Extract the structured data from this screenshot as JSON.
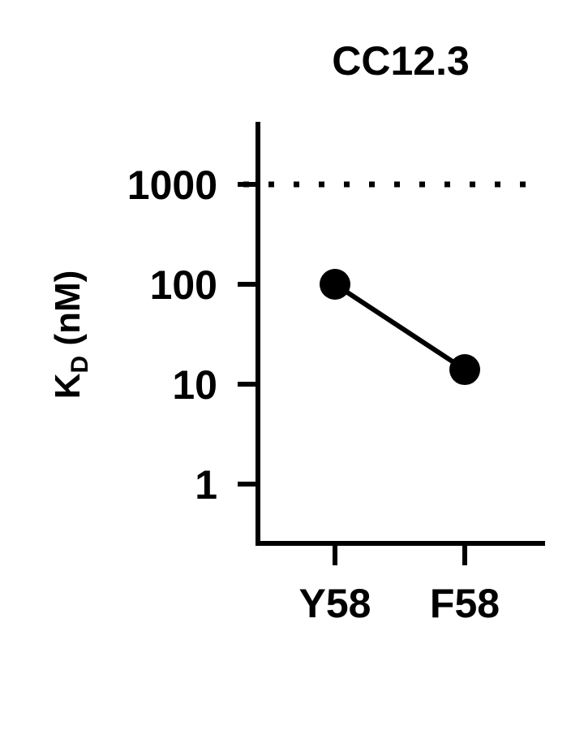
{
  "chart_data": {
    "type": "line",
    "title": "CC12.3",
    "ylabel_main": "K",
    "ylabel_sub": "D",
    "ylabel_unit": " (nM)",
    "categories": [
      "Y58",
      "F58"
    ],
    "series": [
      {
        "values": [
          100,
          14
        ]
      }
    ],
    "reference_line": 1000,
    "y_scale": "log",
    "y_ticks": [
      1,
      10,
      100,
      1000
    ],
    "y_tick_labels": [
      "1",
      "10",
      "100",
      "1000"
    ],
    "ylim": [
      0.3,
      4000
    ],
    "grid": false
  }
}
